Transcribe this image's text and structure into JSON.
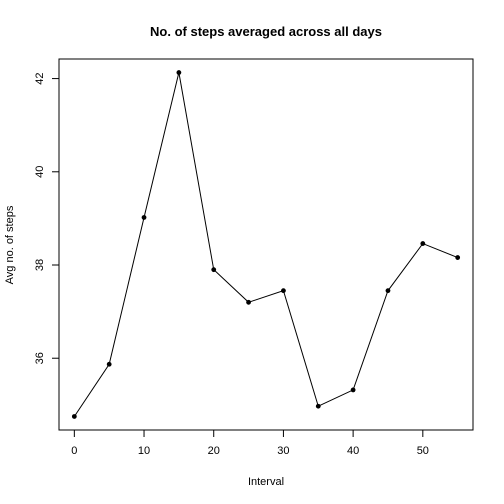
{
  "chart_data": {
    "type": "line",
    "title": "No. of steps averaged across all days",
    "xlabel": "Interval",
    "ylabel": "Avg no. of steps",
    "x": [
      0,
      5,
      10,
      15,
      20,
      25,
      30,
      35,
      40,
      45,
      50,
      55
    ],
    "series": [
      {
        "values": [
          34.75,
          35.87,
          39.02,
          42.13,
          37.9,
          37.2,
          37.45,
          34.97,
          35.32,
          37.45,
          38.46,
          38.16
        ]
      }
    ],
    "xticks": [
      0,
      10,
      20,
      30,
      40,
      50
    ],
    "yticks": [
      36,
      38,
      40,
      42
    ],
    "xlim": [
      -2.2,
      57.2
    ],
    "ylim": [
      34.46,
      42.42
    ],
    "grid": false,
    "legend": "none",
    "line_color": "#000000",
    "marker_color": "#000000"
  }
}
